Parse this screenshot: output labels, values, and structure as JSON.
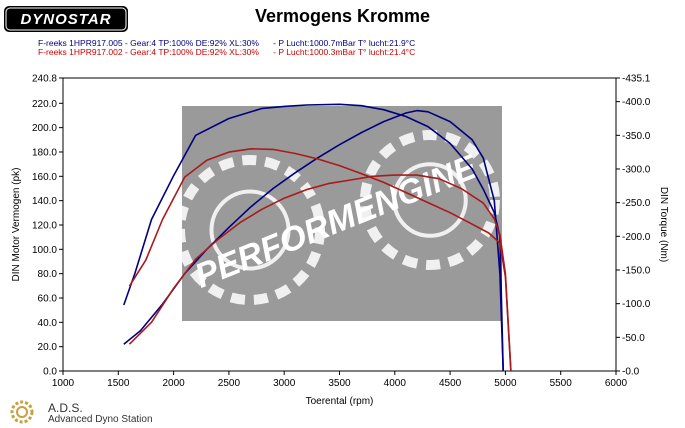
{
  "header": {
    "logo_text": "DYNOSTAR",
    "title": "Vermogens Kromme",
    "info_line_1": "F-reeks 1HPR917.005 - Gear:4 TP:100% DE:92% XL:30%      - P Lucht:1000.7mBar T° lucht:21.9°C",
    "info_line_2": "F-reeks 1HPR917.002 - Gear:4 TP:100% DE:92% XL:30%      - P Lucht:1000.3mBar T° lucht:21.4°C"
  },
  "watermark": {
    "text": "PERFORMENGINE"
  },
  "footer": {
    "title": "A.D.S.",
    "subtitle": "Advanced Dyno Station"
  },
  "colors": {
    "run1": "#000080",
    "run2": "#aa1a1a"
  },
  "chart_data": {
    "type": "line",
    "xlabel": "Toerental (rpm)",
    "ylabel": "DIN Motor Vermogen (pk)",
    "y2label": "DIN Torque (Nm)",
    "xlim": [
      1000,
      6000
    ],
    "ylim": [
      0,
      240.8
    ],
    "y2lim": [
      0,
      435.1
    ],
    "x_ticks": [
      "1000",
      "1500",
      "2000",
      "2500",
      "3000",
      "3500",
      "4000",
      "4500",
      "5000",
      "5500",
      "6000"
    ],
    "y_ticks": [
      "0.0",
      "20.0",
      "40.0",
      "60.0",
      "80.0",
      "100.0",
      "120.0",
      "140.0",
      "160.0",
      "180.0",
      "200.0",
      "220.0",
      "240.8"
    ],
    "y2_ticks": [
      "-0.0",
      "-50.0",
      "-100.0",
      "-150.0",
      "-200.0",
      "-250.0",
      "-300.0",
      "-350.0",
      "-400.0",
      "-435.1"
    ],
    "grid": false,
    "series": [
      {
        "axis": "y",
        "color": "#000080",
        "x": [
          1550,
          1700,
          1900,
          2100,
          2300,
          2500,
          2700,
          2900,
          3100,
          3300,
          3500,
          3700,
          3900,
          4100,
          4200,
          4300,
          4500,
          4700,
          4800,
          4900,
          4950,
          4980
        ],
        "y": [
          22,
          33,
          55,
          80,
          100,
          118,
          135,
          150,
          163,
          175,
          186,
          196,
          205,
          212,
          214,
          213,
          205,
          190,
          175,
          140,
          80,
          0
        ]
      },
      {
        "axis": "y2",
        "color": "#000080",
        "x": [
          1550,
          1650,
          1800,
          2000,
          2200,
          2500,
          2800,
          3000,
          3200,
          3500,
          3700,
          3900,
          4100,
          4300,
          4500,
          4700,
          4800,
          4900,
          4950,
          4980
        ],
        "y": [
          98,
          145,
          225,
          290,
          350,
          375,
          390,
          393,
          395,
          396,
          394,
          388,
          378,
          363,
          338,
          300,
          270,
          235,
          200,
          0
        ]
      },
      {
        "axis": "y",
        "color": "#aa1a1a",
        "x": [
          1600,
          1800,
          2000,
          2200,
          2400,
          2600,
          2800,
          3000,
          3200,
          3400,
          3600,
          3800,
          4000,
          4200,
          4400,
          4600,
          4800,
          4900,
          4950,
          5000,
          5050
        ],
        "y": [
          22,
          40,
          68,
          92,
          108,
          122,
          133,
          142,
          149,
          154,
          157,
          160,
          161,
          161,
          158,
          150,
          138,
          125,
          112,
          80,
          0
        ]
      },
      {
        "axis": "y2",
        "color": "#aa1a1a",
        "x": [
          1600,
          1750,
          1900,
          2100,
          2300,
          2500,
          2700,
          2900,
          3100,
          3300,
          3500,
          3700,
          3900,
          4100,
          4300,
          4500,
          4700,
          4850,
          4950,
          5000,
          5050
        ],
        "y": [
          126,
          165,
          225,
          288,
          313,
          325,
          330,
          329,
          323,
          315,
          305,
          293,
          280,
          265,
          250,
          235,
          218,
          205,
          190,
          140,
          0
        ]
      }
    ]
  }
}
